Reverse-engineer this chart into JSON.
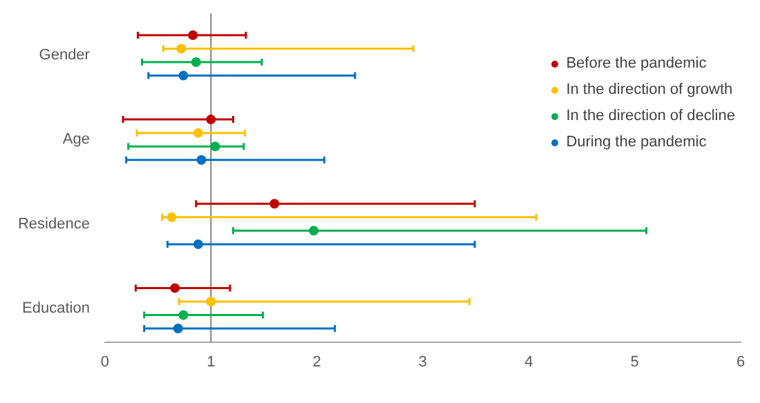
{
  "chart_data": {
    "type": "scatter",
    "orientation": "horizontal",
    "categories": [
      "Gender",
      "Age",
      "Residence",
      "Education"
    ],
    "series": [
      {
        "name": "Before the pandemic",
        "color": "#c00000",
        "values": [
          0.83,
          1.0,
          1.6,
          0.66
        ],
        "errors": [
          [
            0.31,
            1.33
          ],
          [
            0.17,
            1.21
          ],
          [
            0.86,
            3.49
          ],
          [
            0.29,
            1.18
          ]
        ]
      },
      {
        "name": "In the direction of growth",
        "color": "#ffc000",
        "values": [
          0.72,
          0.88,
          0.63,
          1.0
        ],
        "errors": [
          [
            0.55,
            2.91
          ],
          [
            0.3,
            1.32
          ],
          [
            0.54,
            4.07
          ],
          [
            0.7,
            3.44
          ]
        ]
      },
      {
        "name": "In the direction of decline",
        "color": "#00b050",
        "values": [
          0.86,
          1.04,
          1.97,
          0.74
        ],
        "errors": [
          [
            0.35,
            1.48
          ],
          [
            0.22,
            1.31
          ],
          [
            1.21,
            5.11
          ],
          [
            0.37,
            1.49
          ]
        ]
      },
      {
        "name": "During the pandemic",
        "color": "#0070c0",
        "values": [
          0.74,
          0.91,
          0.88,
          0.69
        ],
        "errors": [
          [
            0.41,
            2.36
          ],
          [
            0.2,
            2.07
          ],
          [
            0.59,
            3.49
          ],
          [
            0.37,
            2.17
          ]
        ]
      }
    ],
    "xlim": [
      0,
      6
    ],
    "xticks": [
      0,
      1,
      2,
      3,
      4,
      5,
      6
    ],
    "grid": false,
    "legend": "right",
    "marker": "circle",
    "ref_lines": [
      {
        "axis": "x",
        "value": 1,
        "color": "#808080"
      }
    ]
  }
}
